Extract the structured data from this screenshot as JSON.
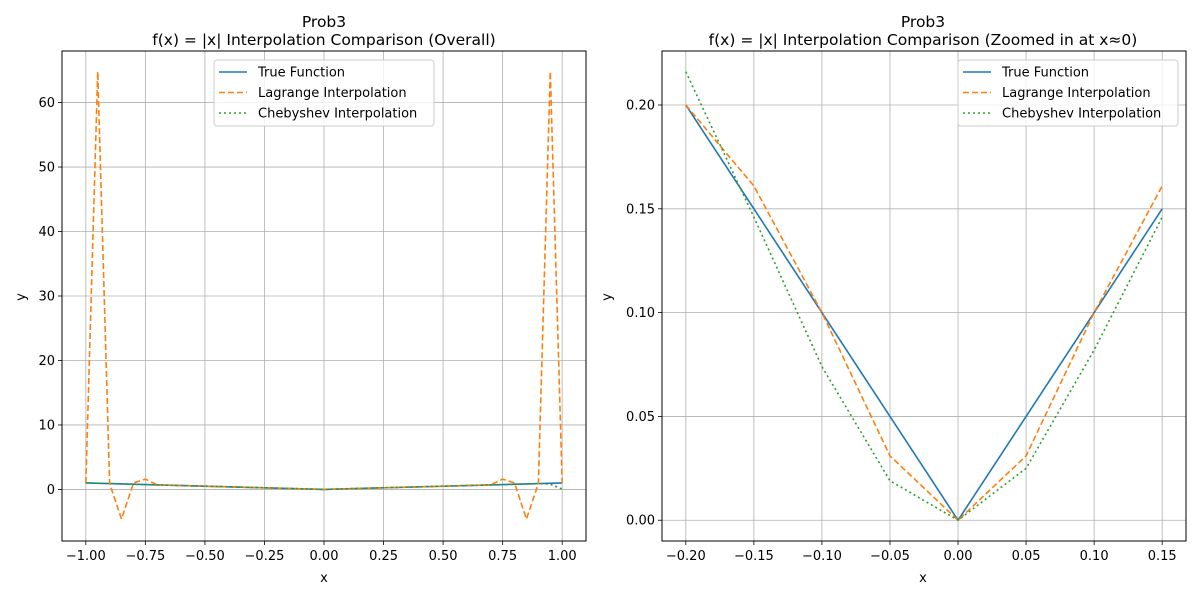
{
  "chart_data": [
    {
      "type": "line",
      "title": "Prob3",
      "subtitle": "f(x) = |x| Interpolation Comparison (Overall)",
      "xlabel": "x",
      "ylabel": "y",
      "xlim": [
        -1.1,
        1.1
      ],
      "ylim": [
        -8.0,
        68.0
      ],
      "xticks": [
        -1.0,
        -0.75,
        -0.5,
        -0.25,
        0.0,
        0.25,
        0.5,
        0.75,
        1.0
      ],
      "xtick_labels": [
        "−1.00",
        "−0.75",
        "−0.50",
        "−0.25",
        "0.00",
        "0.25",
        "0.50",
        "0.75",
        "1.00"
      ],
      "yticks": [
        0,
        10,
        20,
        30,
        40,
        50,
        60
      ],
      "ytick_labels": [
        "0",
        "10",
        "20",
        "30",
        "40",
        "50",
        "60"
      ],
      "grid": true,
      "legend_position": "top-center",
      "series": [
        {
          "name": "True Function",
          "color": "#1f77b4",
          "style": "solid",
          "x": [
            -1.0,
            0.0,
            1.0
          ],
          "y": [
            1.0,
            0.0,
            1.0
          ]
        },
        {
          "name": "Lagrange Interpolation",
          "color": "#ff7f0e",
          "style": "dashed",
          "x": [
            -1.0,
            -0.95,
            -0.9,
            -0.85,
            -0.8,
            -0.75,
            -0.7,
            -0.65,
            -0.6,
            -0.5,
            -0.4,
            -0.3,
            -0.2,
            -0.1,
            0.0,
            0.1,
            0.2,
            0.3,
            0.4,
            0.5,
            0.6,
            0.65,
            0.7,
            0.75,
            0.8,
            0.85,
            0.9,
            0.95,
            1.0
          ],
          "y": [
            1.0,
            64.8,
            0.9,
            -4.6,
            1.0,
            1.6,
            0.7,
            0.65,
            0.6,
            0.5,
            0.4,
            0.3,
            0.2,
            0.1,
            0.0,
            0.1,
            0.2,
            0.3,
            0.4,
            0.5,
            0.6,
            0.65,
            0.7,
            1.6,
            1.0,
            -4.6,
            0.9,
            64.8,
            1.0
          ]
        },
        {
          "name": "Chebyshev Interpolation",
          "color": "#2ca02c",
          "style": "dotted",
          "x": [
            -1.0,
            -0.9,
            -0.8,
            -0.5,
            -0.2,
            0.0,
            0.2,
            0.5,
            0.8,
            0.9,
            0.95,
            1.0
          ],
          "y": [
            1.0,
            0.9,
            0.8,
            0.5,
            0.22,
            0.0,
            0.22,
            0.5,
            0.8,
            0.9,
            0.8,
            0.05
          ]
        }
      ]
    },
    {
      "type": "line",
      "title": "Prob3",
      "subtitle": "f(x) = |x| Interpolation Comparison (Zoomed in at x≈0)",
      "xlabel": "x",
      "ylabel": "y",
      "xlim": [
        -0.2175,
        0.1675
      ],
      "ylim": [
        -0.01,
        0.226
      ],
      "xticks": [
        -0.2,
        -0.15,
        -0.1,
        -0.05,
        0.0,
        0.05,
        0.1,
        0.15
      ],
      "xtick_labels": [
        "−0.20",
        "−0.15",
        "−0.10",
        "−0.05",
        "0.00",
        "0.05",
        "0.10",
        "0.15"
      ],
      "yticks": [
        0.0,
        0.05,
        0.1,
        0.15,
        0.2
      ],
      "ytick_labels": [
        "0.00",
        "0.05",
        "0.10",
        "0.15",
        "0.20"
      ],
      "grid": true,
      "legend_position": "top-right",
      "series": [
        {
          "name": "True Function",
          "color": "#1f77b4",
          "style": "solid",
          "x": [
            -0.2,
            0.0,
            0.15
          ],
          "y": [
            0.2,
            0.0,
            0.15
          ]
        },
        {
          "name": "Lagrange Interpolation",
          "color": "#ff7f0e",
          "style": "dashed",
          "x": [
            -0.2,
            -0.15,
            -0.1,
            -0.05,
            0.0,
            0.05,
            0.1,
            0.15
          ],
          "y": [
            0.2,
            0.161,
            0.1,
            0.031,
            0.0,
            0.031,
            0.1,
            0.161
          ]
        },
        {
          "name": "Chebyshev Interpolation",
          "color": "#2ca02c",
          "style": "dotted",
          "x": [
            -0.2,
            -0.15,
            -0.1,
            -0.05,
            0.0,
            0.05,
            0.1,
            0.15
          ],
          "y": [
            0.216,
            0.146,
            0.074,
            0.019,
            0.0,
            0.025,
            0.082,
            0.146
          ]
        }
      ]
    }
  ]
}
